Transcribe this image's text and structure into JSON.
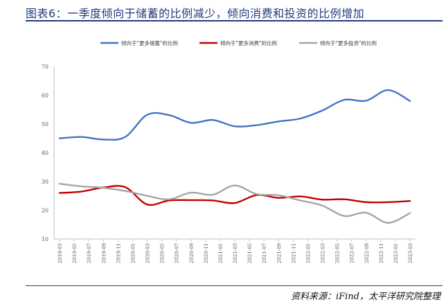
{
  "title": "图表6：一季度倾向于储蓄的比例减少，倾向消费和投资的比例增加",
  "source": "资料来源：iFind，太平洋研究院整理",
  "chart_data": {
    "type": "line",
    "title": "",
    "xlabel": "",
    "ylabel": "",
    "ylim": [
      10,
      70
    ],
    "yticks": [
      10,
      20,
      30,
      40,
      50,
      60,
      70
    ],
    "grid": false,
    "legend_position": "top",
    "categories": [
      "2019-Q1",
      "2019-Q2",
      "2019-Q3",
      "2019-Q4",
      "2020-Q1",
      "2020-Q2",
      "2020-Q3",
      "2020-Q4",
      "2021-Q1",
      "2021-Q2",
      "2021-Q3",
      "2021-Q4",
      "2022-Q1",
      "2022-Q2",
      "2022-Q3",
      "2022-Q4",
      "2023-Q1"
    ],
    "tick_labels": [
      "2019-03",
      "2019-05",
      "2019-07",
      "2019-09",
      "2019-11",
      "2020-01",
      "2020-03",
      "2020-05",
      "2020-07",
      "2020-09",
      "2020-11",
      "2021-01",
      "2021-03",
      "2021-05",
      "2021-07",
      "2021-09",
      "2021-11",
      "2022-01",
      "2022-03",
      "2022-05",
      "2022-07",
      "2022-09",
      "2022-11",
      "2023-01",
      "2023-03"
    ],
    "series": [
      {
        "name": "倾向于\"更多储蓄\"的比例",
        "color": "#4472c4",
        "values": [
          45.0,
          45.5,
          44.6,
          45.5,
          53.2,
          53.1,
          50.4,
          51.4,
          49.2,
          49.6,
          50.9,
          51.9,
          54.7,
          58.4,
          58.1,
          61.8,
          58.0
        ]
      },
      {
        "name": "倾向于\"更多消费\"的比例",
        "color": "#c00000",
        "values": [
          26.0,
          26.5,
          27.9,
          28.0,
          22.0,
          23.4,
          23.5,
          23.4,
          22.5,
          25.3,
          24.3,
          24.8,
          23.7,
          23.8,
          22.8,
          22.8,
          23.2
        ]
      },
      {
        "name": "倾向于\"更多投资\"的比例",
        "color": "#a5a5a5",
        "values": [
          29.2,
          28.3,
          27.8,
          26.7,
          25.0,
          23.8,
          26.1,
          25.4,
          28.6,
          25.6,
          25.2,
          23.4,
          21.6,
          18.0,
          19.1,
          15.6,
          19.0
        ]
      }
    ]
  }
}
